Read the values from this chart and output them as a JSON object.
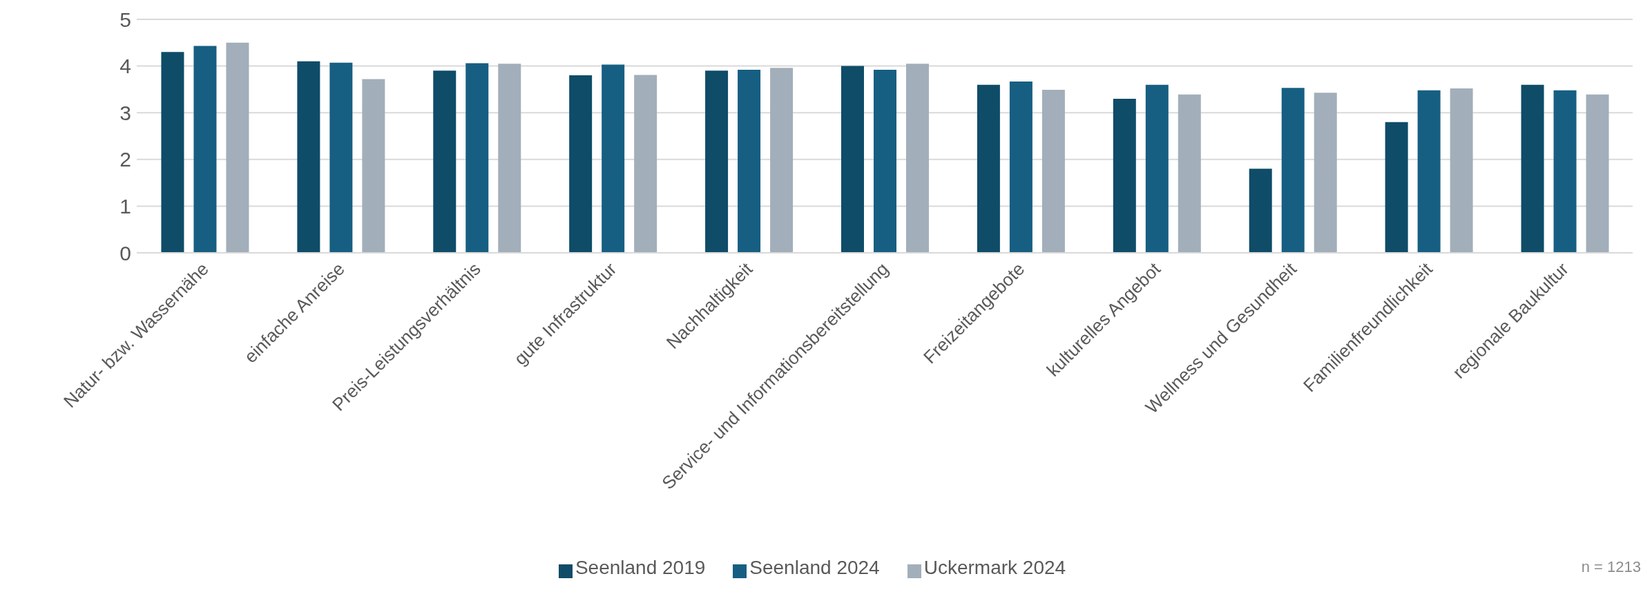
{
  "chart_data": {
    "type": "bar",
    "categories": [
      "Natur- bzw. Wassernähe",
      "einfache Anreise",
      "Preis-Leistungsverhältnis",
      "gute Infrastruktur",
      "Nachhaltigkeit",
      "Service- und Informationsbereitstellung",
      "Freizeitangebote",
      "kulturelles Angebot",
      "Wellness und Gesundheit",
      "Familienfreundlichkeit",
      "regionale Baukultur"
    ],
    "series": [
      {
        "name": "Seenland 2019",
        "color": "#0f4c68",
        "values": [
          4.3,
          4.1,
          3.9,
          3.8,
          3.9,
          4.0,
          3.6,
          3.3,
          1.8,
          2.8,
          3.6
        ]
      },
      {
        "name": "Seenland 2024",
        "color": "#165f82",
        "values": [
          4.43,
          4.07,
          4.06,
          4.03,
          3.92,
          3.92,
          3.67,
          3.6,
          3.53,
          3.48,
          3.48
        ]
      },
      {
        "name": "Uckermark 2024",
        "color": "#a2afba",
        "values": [
          4.5,
          3.72,
          4.05,
          3.81,
          3.96,
          4.05,
          3.49,
          3.39,
          3.43,
          3.52,
          3.39
        ]
      }
    ],
    "ylim": [
      0,
      5
    ],
    "yticks": [
      0,
      1,
      2,
      3,
      4,
      5
    ],
    "grid": "y",
    "legend": "bottom",
    "annotations": [
      "n = 1213"
    ]
  }
}
